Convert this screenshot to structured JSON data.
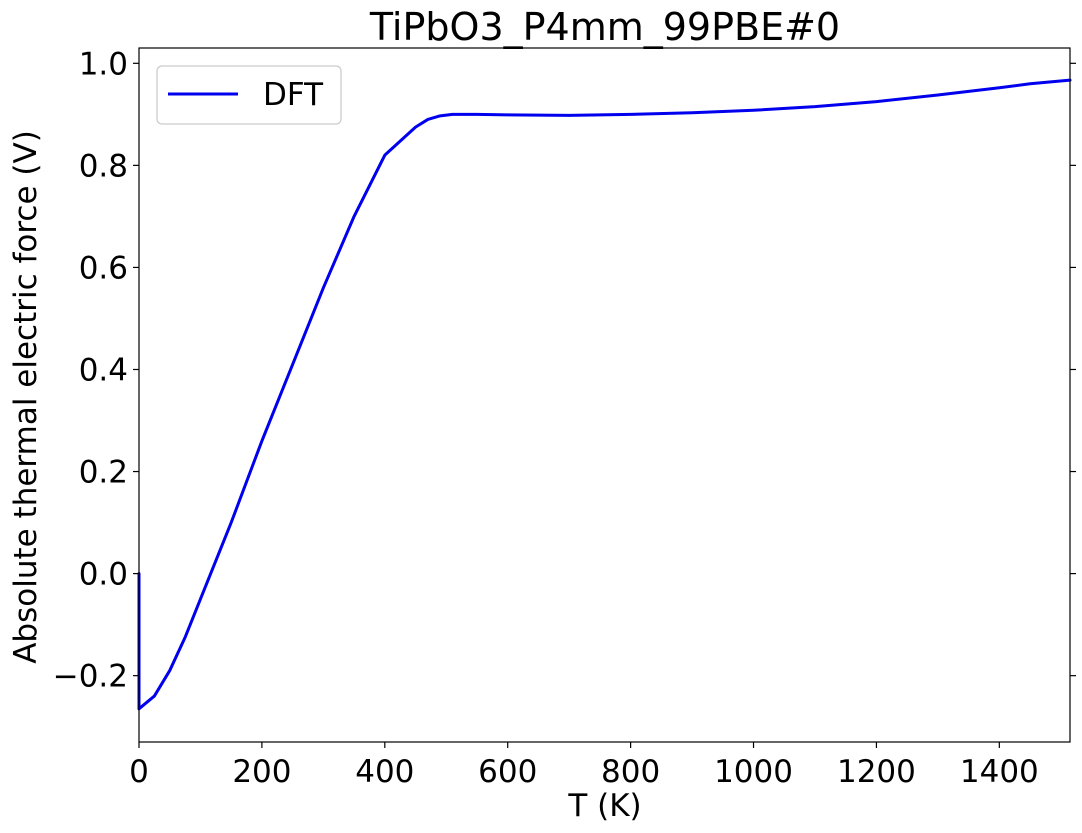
{
  "chart_data": {
    "type": "line",
    "title": "TiPbO3_P4mm_99PBE#0",
    "xlabel": "T (K)",
    "ylabel": "Absolute thermal electric force (V)",
    "xlim": [
      0,
      1515
    ],
    "ylim": [
      -0.33,
      1.03
    ],
    "x_ticks": [
      0,
      200,
      400,
      600,
      800,
      1000,
      1200,
      1400
    ],
    "y_ticks": [
      -0.2,
      0.0,
      0.2,
      0.4,
      0.6,
      0.8,
      1.0
    ],
    "x_tick_labels": [
      "0",
      "200",
      "400",
      "600",
      "800",
      "1000",
      "1200",
      "1400"
    ],
    "y_tick_labels": [
      "−0.2",
      "0.0",
      "0.2",
      "0.4",
      "0.6",
      "0.8",
      "1.0"
    ],
    "grid": false,
    "legend": {
      "position": "top-left",
      "entries": [
        "DFT"
      ]
    },
    "series": [
      {
        "name": "DFT",
        "color": "#0000ee",
        "x": [
          0,
          0,
          25,
          50,
          75,
          100,
          150,
          200,
          250,
          300,
          350,
          400,
          450,
          470,
          490,
          510,
          550,
          600,
          700,
          800,
          900,
          1000,
          1100,
          1200,
          1300,
          1400,
          1450,
          1515
        ],
        "y": [
          0.0,
          -0.265,
          -0.24,
          -0.19,
          -0.125,
          -0.05,
          0.1,
          0.26,
          0.41,
          0.56,
          0.7,
          0.82,
          0.875,
          0.89,
          0.897,
          0.9,
          0.9,
          0.899,
          0.898,
          0.9,
          0.903,
          0.908,
          0.915,
          0.925,
          0.938,
          0.952,
          0.96,
          0.967
        ]
      }
    ]
  }
}
